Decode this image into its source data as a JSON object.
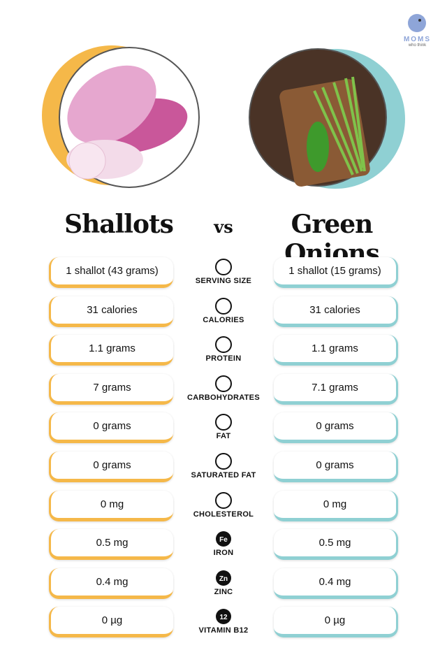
{
  "logo": {
    "name": "MOMS",
    "tagline": "who think"
  },
  "titles": {
    "left": "Shallots",
    "vs": "vs",
    "right": "Green Onions"
  },
  "rows": [
    {
      "left": "1 shallot (43 grams)",
      "label": "SERVING SIZE",
      "right": "1 shallot (15 grams)"
    },
    {
      "left": "31 calories",
      "label": "CALORIES",
      "right": "31 calories"
    },
    {
      "left": "1.1 grams",
      "label": "PROTEIN",
      "right": "1.1 grams"
    },
    {
      "left": "7 grams",
      "label": "CARBOHYDRATES",
      "right": "7.1 grams"
    },
    {
      "left": "0 grams",
      "label": "FAT",
      "right": "0 grams"
    },
    {
      "left": "0 grams",
      "label": "SATURATED FAT",
      "right": "0 grams"
    },
    {
      "left": "0 mg",
      "label": "CHOLESTEROL",
      "right": "0 mg"
    },
    {
      "left": "0.5 mg",
      "label": "IRON",
      "right": "0.5 mg",
      "icon_text": "Fe"
    },
    {
      "left": "0.4 mg",
      "label": "ZINC",
      "right": "0.4 mg",
      "icon_text": "Zn"
    },
    {
      "left": "0 µg",
      "label": "VITAMIN B12",
      "right": "0 µg",
      "icon_text": "12"
    }
  ]
}
